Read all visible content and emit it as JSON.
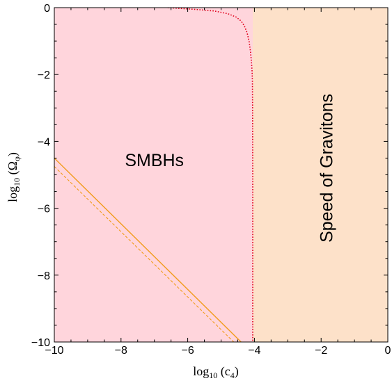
{
  "chart_data": {
    "type": "area",
    "title": "",
    "xlabel": "log₁₀(c₄)",
    "ylabel": "log₁₀(Ω_φ)",
    "xlim": [
      -10,
      0
    ],
    "ylim": [
      -10,
      0
    ],
    "grid": false,
    "x_ticks": [
      -10,
      -8,
      -6,
      -4,
      -2,
      0
    ],
    "y_ticks": [
      0,
      -2,
      -4,
      -6,
      -8,
      -10
    ],
    "x_tick_labels": [
      "−10",
      "−8",
      "−6",
      "−4",
      "−2",
      "0"
    ],
    "y_tick_labels": [
      "0",
      "−2",
      "−4",
      "−6",
      "−8",
      "−10"
    ],
    "regions": [
      {
        "label": "SMBHs",
        "color": "#ffd5dc",
        "x_range": [
          -10,
          -4.05
        ],
        "y_range": [
          -10,
          0
        ],
        "label_pos": {
          "x": -7.0,
          "y": -4.6
        }
      },
      {
        "label": "Speed of Gravitons",
        "color": "#fde1c9",
        "x_range": [
          -4.05,
          0
        ],
        "y_range": [
          -10,
          0
        ],
        "label_pos": {
          "x": -1.8,
          "y": -4.8
        },
        "label_rotation_deg": -90
      }
    ],
    "series": [
      {
        "style": "dotted",
        "color": "#e0001b",
        "x": [
          -6.6,
          -5.8,
          -5.2,
          -4.8,
          -4.55,
          -4.4,
          -4.3,
          -4.22,
          -4.16,
          -4.12,
          -4.09,
          -4.07,
          -4.06,
          -4.055,
          -4.05,
          -4.05
        ],
        "y": [
          0.0,
          -0.05,
          -0.1,
          -0.18,
          -0.28,
          -0.4,
          -0.55,
          -0.75,
          -1.0,
          -1.3,
          -1.6,
          -1.9,
          -2.2,
          -3.0,
          -5.0,
          -10.0
        ]
      },
      {
        "style": "solid",
        "color": "#f29c1c",
        "x": [
          -10.0,
          -4.4
        ],
        "y": [
          -4.5,
          -10.0
        ]
      },
      {
        "style": "dashed",
        "color": "#f29c1c",
        "x": [
          -10.0,
          -4.62
        ],
        "y": [
          -4.75,
          -10.0
        ]
      }
    ]
  }
}
